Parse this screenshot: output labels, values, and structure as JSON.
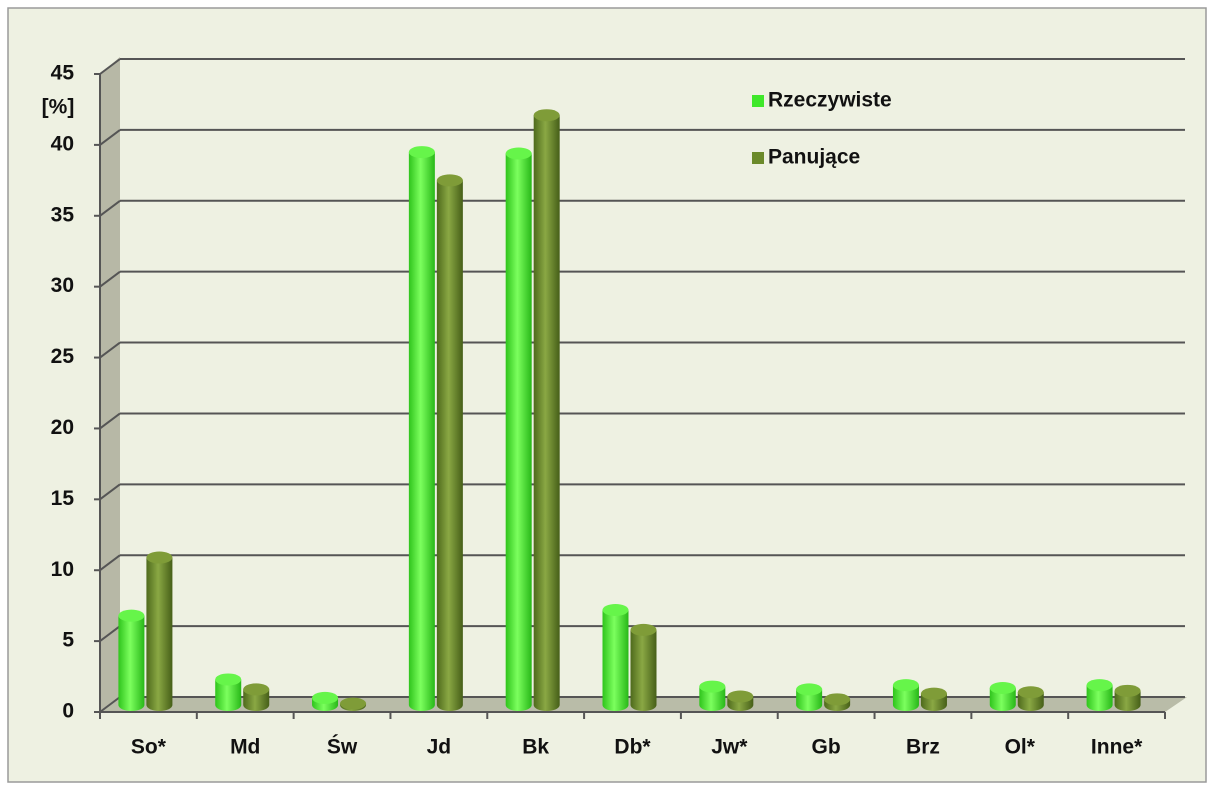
{
  "chart_data": {
    "type": "bar3d",
    "y_label": "[%]",
    "categories": [
      "So*",
      "Md",
      "Św",
      "Jd",
      "Bk",
      "Db*",
      "Jw*",
      "Gb",
      "Brz",
      "Ol*",
      "Inne*"
    ],
    "series": [
      {
        "name": "Rzeczywiste",
        "color": "#3fe82a",
        "values": [
          6.3,
          1.8,
          0.5,
          39.0,
          38.9,
          6.7,
          1.3,
          1.1,
          1.4,
          1.2,
          1.4
        ]
      },
      {
        "name": "Panujące",
        "color": "#6b8a2a",
        "values": [
          10.4,
          1.1,
          0.1,
          37.0,
          41.6,
          5.3,
          0.6,
          0.4,
          0.8,
          0.9,
          1.0
        ]
      }
    ],
    "ylim": [
      0,
      45
    ],
    "yticks": [
      0,
      5,
      10,
      15,
      20,
      25,
      30,
      35,
      40,
      45
    ],
    "grid": true,
    "legend": "top-right"
  }
}
